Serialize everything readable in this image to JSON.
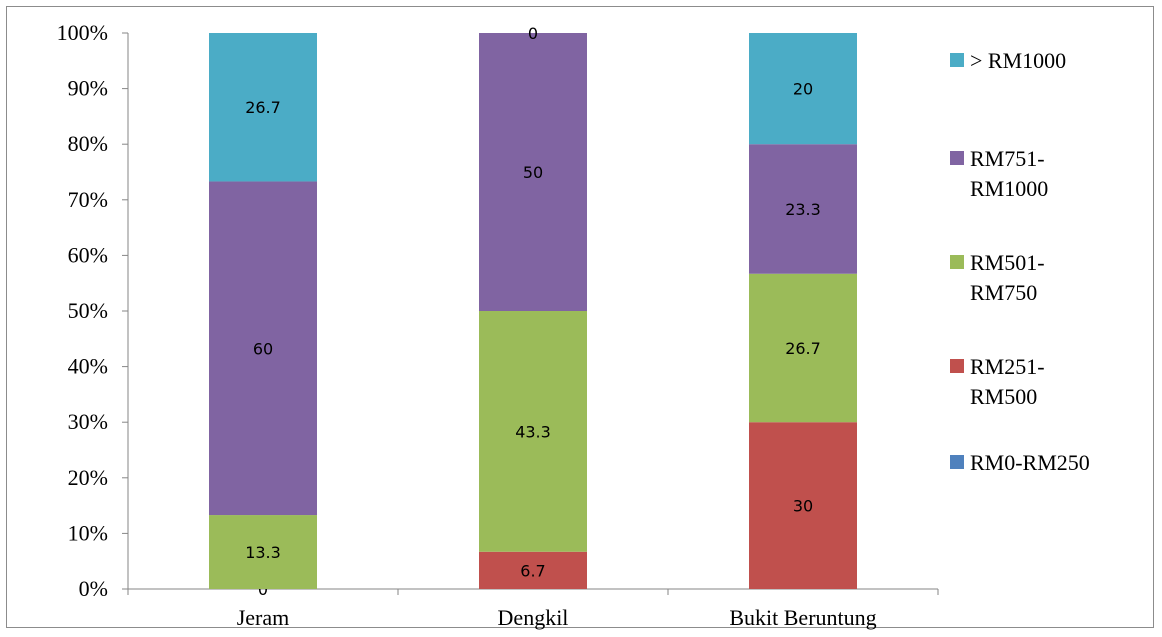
{
  "chart_data": {
    "type": "bar",
    "stacked": true,
    "stack_mode": "percent",
    "categories": [
      "Jeram",
      "Dengkil",
      "Bukit Beruntung"
    ],
    "series": [
      {
        "name": "RM0-RM250",
        "color": "#4f81bd",
        "values": [
          0,
          0,
          0
        ],
        "labels": [
          "0",
          "",
          ""
        ]
      },
      {
        "name": "RM251-RM500",
        "color": "#c0504d",
        "values": [
          0,
          6.7,
          30
        ],
        "labels": [
          "",
          "6.7",
          "30"
        ]
      },
      {
        "name": "RM501-RM750",
        "color": "#9bbb59",
        "values": [
          13.3,
          43.3,
          26.7
        ],
        "labels": [
          "13.3",
          "43.3",
          "26.7"
        ]
      },
      {
        "name": "RM751-RM1000",
        "color": "#8064a2",
        "values": [
          60,
          50,
          23.3
        ],
        "labels": [
          "60",
          "50",
          "23.3"
        ]
      },
      {
        "name": "> RM1000",
        "color": "#4bacc6",
        "values": [
          26.7,
          0,
          20
        ],
        "labels": [
          "26.7",
          "0",
          "20"
        ]
      }
    ],
    "y_ticks": [
      "0%",
      "10%",
      "20%",
      "30%",
      "40%",
      "50%",
      "60%",
      "70%",
      "80%",
      "90%",
      "100%"
    ],
    "ylim": [
      0,
      100
    ],
    "grid": false,
    "legend_position": "right",
    "legend_order": [
      "> RM1000",
      "RM751-RM1000",
      "RM501-RM750",
      "RM251-RM500",
      "RM0-RM250"
    ],
    "legend_lines": {
      "> RM1000": [
        "> RM1000"
      ],
      "RM751-RM1000": [
        "RM751-",
        "RM1000"
      ],
      "RM501-RM750": [
        "RM501-",
        "RM750"
      ],
      "RM251-RM500": [
        "RM251-",
        "RM500"
      ],
      "RM0-RM250": [
        "RM0-RM250"
      ]
    },
    "title": "",
    "xlabel": "",
    "ylabel": ""
  }
}
